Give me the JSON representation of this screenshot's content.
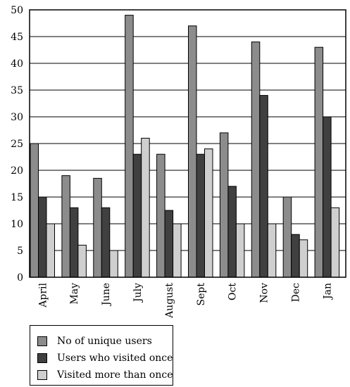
{
  "chart_data": {
    "type": "bar",
    "categories": [
      "April",
      "May",
      "June",
      "July",
      "August",
      "Sept",
      "Oct",
      "Nov",
      "Dec",
      "Jan"
    ],
    "series": [
      {
        "name": "No of unique users",
        "color": "#8c8c8c",
        "values": [
          25,
          19,
          18.5,
          49,
          23,
          47,
          27,
          44,
          15,
          43
        ]
      },
      {
        "name": "Users who visited once",
        "color": "#404040",
        "values": [
          15,
          13,
          13,
          23,
          12.5,
          23,
          17,
          34,
          8,
          30
        ]
      },
      {
        "name": "Visited more than once",
        "color": "#cfcfcf",
        "values": [
          10,
          6,
          5,
          26,
          10,
          24,
          10,
          10,
          7,
          13
        ]
      }
    ],
    "yticks": [
      0,
      5,
      10,
      15,
      20,
      25,
      30,
      35,
      40,
      45,
      50
    ],
    "ylim": [
      0,
      50
    ],
    "grid": true,
    "legend_position": "bottom-left",
    "title": "",
    "xlabel": "",
    "ylabel": ""
  }
}
